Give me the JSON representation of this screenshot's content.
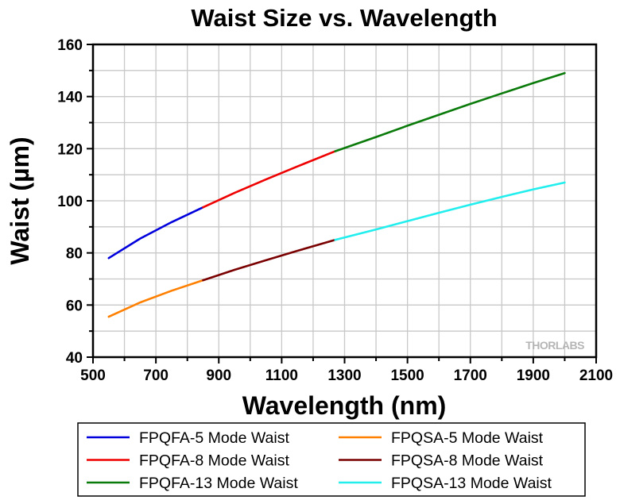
{
  "chart_data": {
    "type": "line",
    "title": "Waist Size vs. Wavelength",
    "xlabel": "Wavelength (nm)",
    "ylabel": "Waist (µm)",
    "xlim": [
      500,
      2100
    ],
    "ylim": [
      40,
      160
    ],
    "xticks": [
      500,
      700,
      900,
      1100,
      1300,
      1500,
      1700,
      1900,
      2100
    ],
    "yticks": [
      40,
      60,
      80,
      100,
      120,
      140,
      160
    ],
    "grid": true,
    "legend_position": "bottom",
    "watermark": "THORLABS",
    "series": [
      {
        "name": "FPQFA-5 Mode Waist",
        "color": "#0000dd",
        "x": [
          550,
          650,
          750,
          850
        ],
        "y": [
          78.0,
          85.5,
          91.8,
          97.5
        ]
      },
      {
        "name": "FPQSA-5 Mode Waist",
        "color": "#ff8000",
        "x": [
          550,
          650,
          750,
          850
        ],
        "y": [
          55.5,
          61.0,
          65.5,
          69.5
        ]
      },
      {
        "name": "FPQFA-8 Mode Waist",
        "color": "#ee0000",
        "x": [
          850,
          950,
          1050,
          1150,
          1270
        ],
        "y": [
          97.5,
          103.0,
          108.2,
          113.2,
          119.0
        ]
      },
      {
        "name": "FPQSA-8 Mode Waist",
        "color": "#7a0000",
        "x": [
          850,
          950,
          1050,
          1150,
          1270
        ],
        "y": [
          69.5,
          73.5,
          77.2,
          80.8,
          85.0
        ]
      },
      {
        "name": "FPQFA-13 Mode Waist",
        "color": "#0a7a0a",
        "x": [
          1270,
          1400,
          1500,
          1600,
          1700,
          1800,
          1900,
          2000
        ],
        "y": [
          119.0,
          124.5,
          128.8,
          133.0,
          137.2,
          141.2,
          145.2,
          149.0
        ]
      },
      {
        "name": "FPQSA-13 Mode Waist",
        "color": "#22eeee",
        "x": [
          1270,
          1400,
          1500,
          1600,
          1700,
          1800,
          1900,
          2000
        ],
        "y": [
          85.0,
          89.0,
          92.2,
          95.4,
          98.5,
          101.5,
          104.4,
          107.0
        ]
      }
    ]
  }
}
